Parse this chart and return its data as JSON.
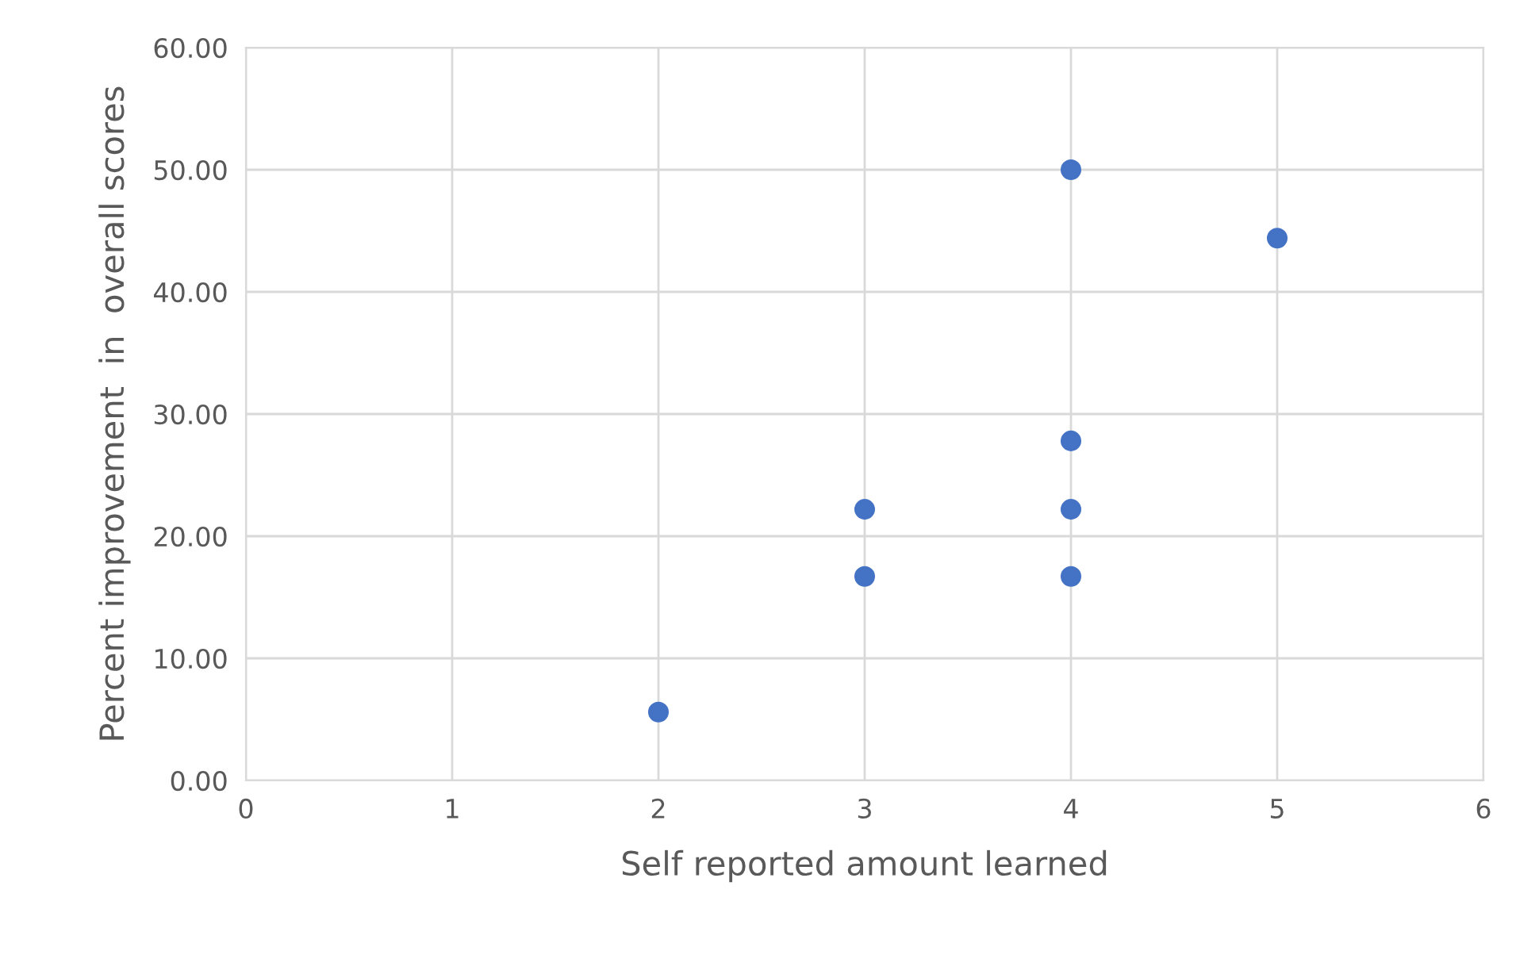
{
  "chart_data": {
    "type": "scatter",
    "xlabel": "Self reported amount learned",
    "ylabel": "Percent improvement  in  overall scores",
    "x": [
      2,
      3,
      3,
      4,
      4,
      4,
      4,
      5
    ],
    "series": [
      {
        "color": "#4472c4",
        "values": [
          5.6,
          16.7,
          22.2,
          16.7,
          22.2,
          27.8,
          50,
          44.4
        ]
      }
    ],
    "xlim": [
      0,
      6
    ],
    "xticks": [
      0,
      1,
      2,
      3,
      4,
      5,
      6
    ],
    "ylim": [
      0,
      60
    ],
    "yticks": [
      {
        "value": 0,
        "label": "0.00"
      },
      {
        "value": 10,
        "label": "10.00"
      },
      {
        "value": 20,
        "label": "20.00"
      },
      {
        "value": 30,
        "label": "30.00"
      },
      {
        "value": 40,
        "label": "40.00"
      },
      {
        "value": 50,
        "label": "50.00"
      },
      {
        "value": 60,
        "label": "60.00"
      }
    ],
    "grid": true,
    "marker": "circle"
  }
}
